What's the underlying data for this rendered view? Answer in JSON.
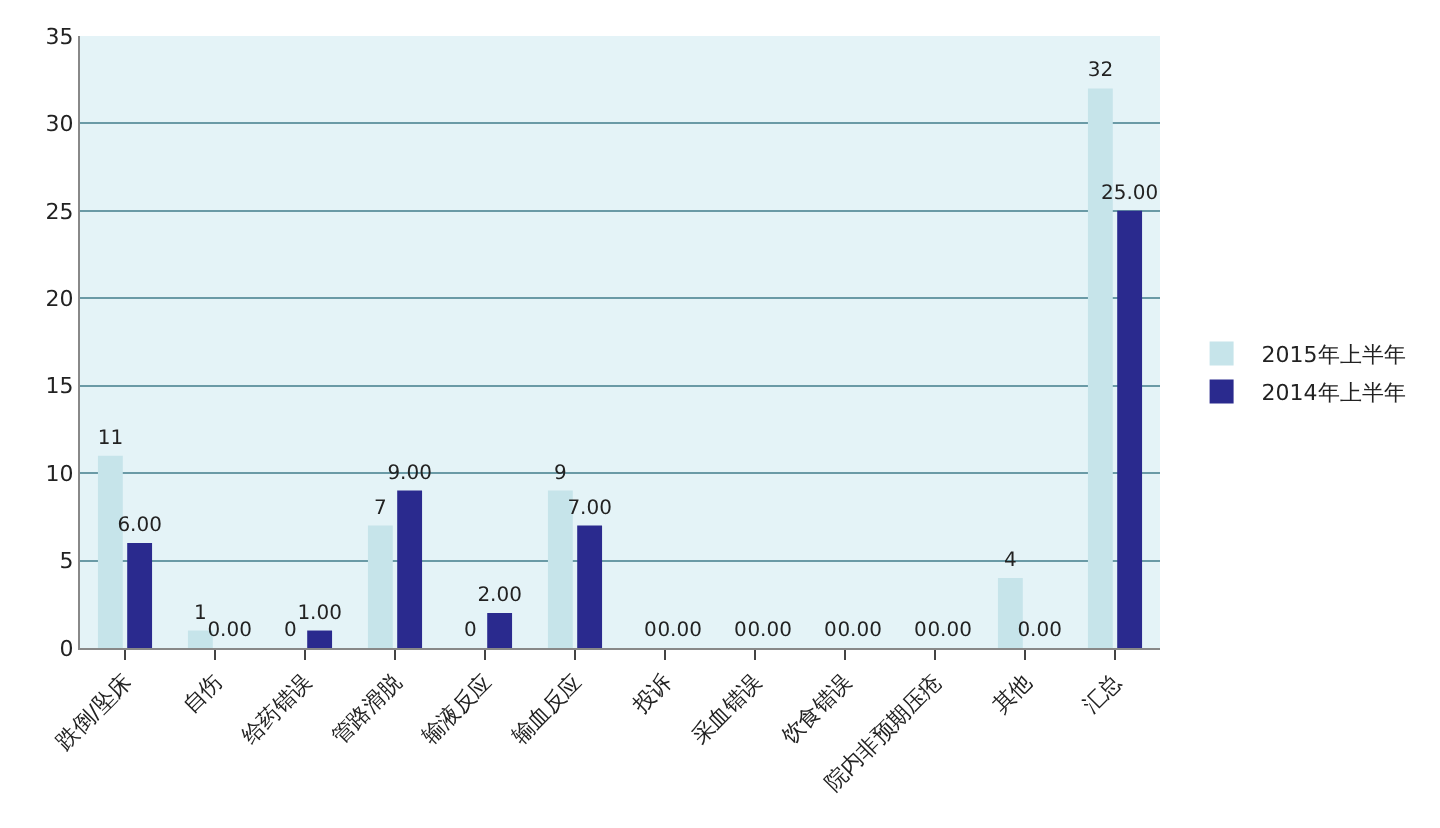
{
  "chart_data": {
    "type": "bar",
    "categories": [
      "跌倒/坠床",
      "自伤",
      "给药错误",
      "管路滑脱",
      "输液反应",
      "输血反应",
      "投诉",
      "采血错误",
      "饮食错误",
      "院内非预期压疮",
      "其他",
      "汇总"
    ],
    "series": [
      {
        "name": "2015年上半年",
        "color": "#c6e4ea",
        "values": [
          11,
          1,
          0,
          7,
          0,
          9,
          0,
          0,
          0,
          0,
          4,
          32
        ],
        "value_labels": [
          "11",
          "1",
          "0",
          "7",
          "0",
          "9",
          "0",
          "0",
          "0",
          "0",
          "4",
          "32"
        ]
      },
      {
        "name": "2014年上半年",
        "color": "#2a2a8e",
        "values": [
          6,
          0,
          1,
          9,
          2,
          7,
          0,
          0,
          0,
          0,
          0,
          25
        ],
        "value_labels": [
          "6.00",
          "0.00",
          "1.00",
          "9.00",
          "2.00",
          "7.00",
          "0.00",
          "0.00",
          "0.00",
          "0.00",
          "0.00",
          "25.00"
        ]
      }
    ],
    "ylim": [
      0,
      35
    ],
    "yticks": [
      0,
      5,
      10,
      15,
      20,
      25,
      30,
      35
    ],
    "grid": "y",
    "legend": "right"
  }
}
